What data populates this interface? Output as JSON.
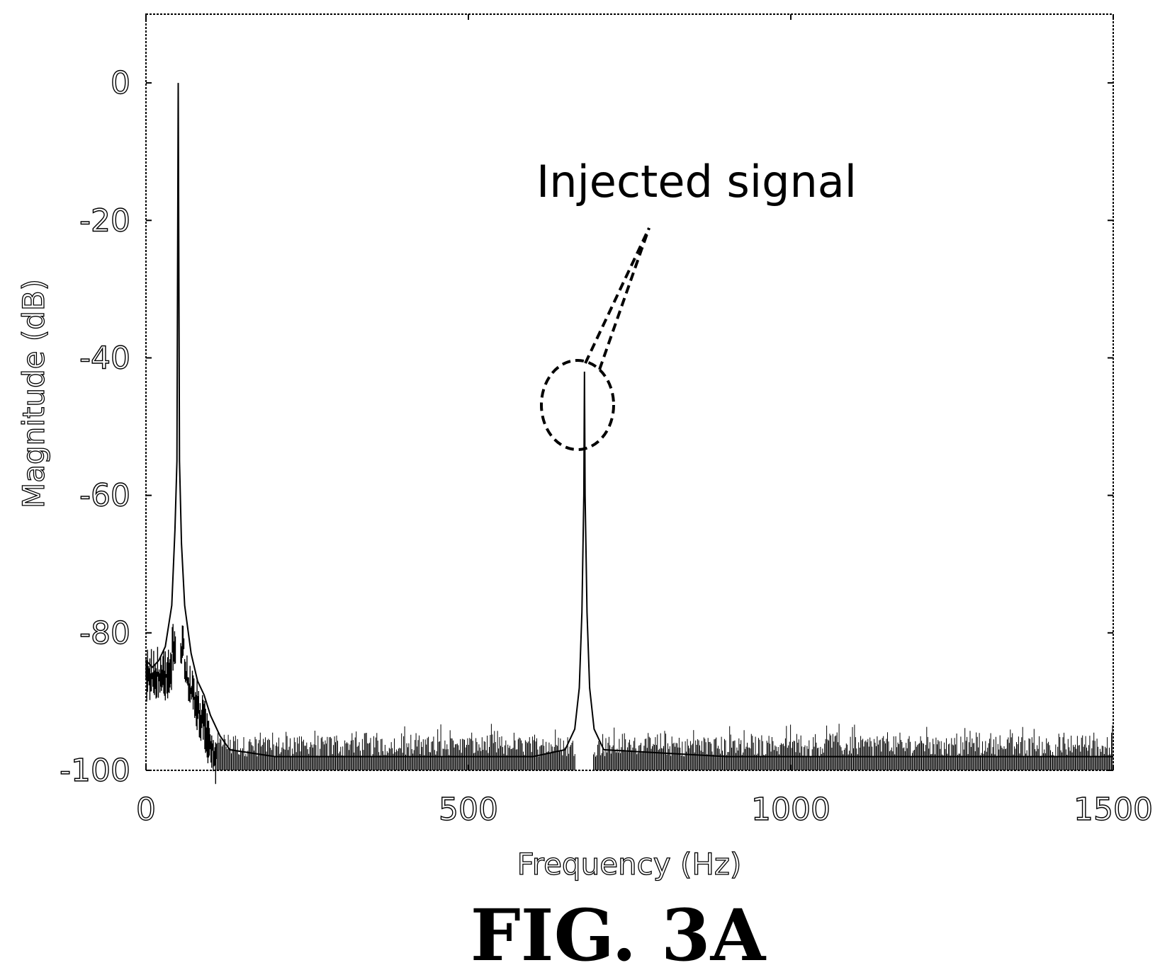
{
  "chart_data": {
    "type": "line",
    "title": "",
    "xlabel": "Frequency (Hz)",
    "ylabel": "Magnitude (dB)",
    "xlim": [
      0,
      1500
    ],
    "ylim": [
      -100,
      10
    ],
    "x_ticks": [
      0,
      500,
      1000,
      1500
    ],
    "x_tick_labels": [
      "0",
      "500",
      "1000",
      "1500"
    ],
    "y_ticks": [
      0,
      -20,
      -40,
      -60,
      -80,
      -100
    ],
    "y_tick_labels": [
      "0",
      "-20",
      "-40",
      "-60",
      "-80",
      "-100"
    ],
    "grid": false,
    "series": [
      {
        "color": "#000000",
        "noise_floor_db": -97,
        "noise_peak_db": -93,
        "points": [
          [
            0,
            -84
          ],
          [
            10,
            -85
          ],
          [
            20,
            -84
          ],
          [
            30,
            -82
          ],
          [
            40,
            -76
          ],
          [
            45,
            -65
          ],
          [
            48,
            -55
          ],
          [
            50,
            0
          ],
          [
            52,
            -55
          ],
          [
            55,
            -67
          ],
          [
            60,
            -76
          ],
          [
            70,
            -83
          ],
          [
            80,
            -87
          ],
          [
            90,
            -89
          ],
          [
            100,
            -92
          ],
          [
            115,
            -95
          ],
          [
            130,
            -97
          ],
          [
            200,
            -98
          ],
          [
            400,
            -98
          ],
          [
            600,
            -98
          ],
          [
            650,
            -97
          ],
          [
            665,
            -94
          ],
          [
            672,
            -88
          ],
          [
            676,
            -77
          ],
          [
            679,
            -60
          ],
          [
            680,
            -42
          ],
          [
            681,
            -60
          ],
          [
            684,
            -77
          ],
          [
            688,
            -88
          ],
          [
            695,
            -94
          ],
          [
            710,
            -97
          ],
          [
            900,
            -98
          ],
          [
            1200,
            -98
          ],
          [
            1500,
            -98
          ]
        ]
      }
    ],
    "annotations": [
      {
        "text": "Injected signal",
        "target_x": 680,
        "target_y": -47
      }
    ]
  },
  "caption": "FIG. 3A"
}
